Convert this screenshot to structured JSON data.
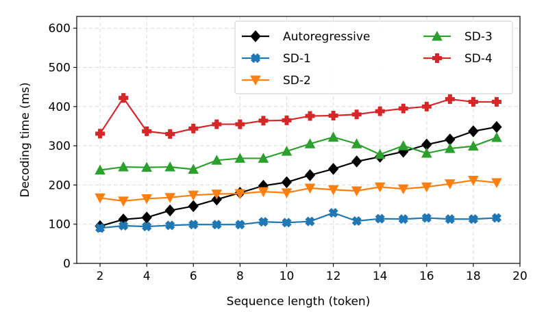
{
  "chart_data": {
    "type": "line",
    "title": "",
    "xlabel": "Sequence length (token)",
    "ylabel": "Decoding time (ms)",
    "xlim": [
      1,
      20
    ],
    "ylim": [
      0,
      630
    ],
    "xticks": [
      2,
      4,
      6,
      8,
      10,
      12,
      14,
      16,
      18,
      20
    ],
    "yticks": [
      0,
      100,
      200,
      300,
      400,
      500,
      600
    ],
    "grid": true,
    "legend_position": "top-right",
    "legend_columns": 2,
    "x": [
      2,
      3,
      4,
      5,
      6,
      7,
      8,
      9,
      10,
      11,
      12,
      13,
      14,
      15,
      16,
      17,
      18,
      19
    ],
    "series": [
      {
        "name": "Autoregressive",
        "color": "#000000",
        "marker": "diamond",
        "values": [
          95,
          112,
          117,
          135,
          146,
          163,
          180,
          198,
          207,
          225,
          241,
          260,
          272,
          285,
          303,
          316,
          337,
          348
        ]
      },
      {
        "name": "SD-1",
        "color": "#1f77b4",
        "marker": "x-filled",
        "values": [
          90,
          96,
          94,
          97,
          99,
          99,
          99,
          106,
          104,
          107,
          129,
          108,
          114,
          113,
          116,
          113,
          113,
          116
        ]
      },
      {
        "name": "SD-2",
        "color": "#ff7f0e",
        "marker": "triangle-down",
        "values": [
          167,
          159,
          165,
          168,
          174,
          177,
          178,
          183,
          180,
          192,
          188,
          185,
          195,
          190,
          195,
          203,
          212,
          206
        ]
      },
      {
        "name": "SD-3",
        "color": "#2ca02c",
        "marker": "triangle-up",
        "values": [
          238,
          246,
          245,
          246,
          240,
          263,
          268,
          268,
          286,
          305,
          322,
          305,
          278,
          300,
          281,
          293,
          299,
          321
        ]
      },
      {
        "name": "SD-4",
        "color": "#d62728",
        "marker": "plus-filled",
        "values": [
          331,
          422,
          337,
          330,
          344,
          355,
          355,
          364,
          365,
          376,
          377,
          380,
          388,
          395,
          400,
          419,
          412,
          412
        ]
      }
    ]
  }
}
